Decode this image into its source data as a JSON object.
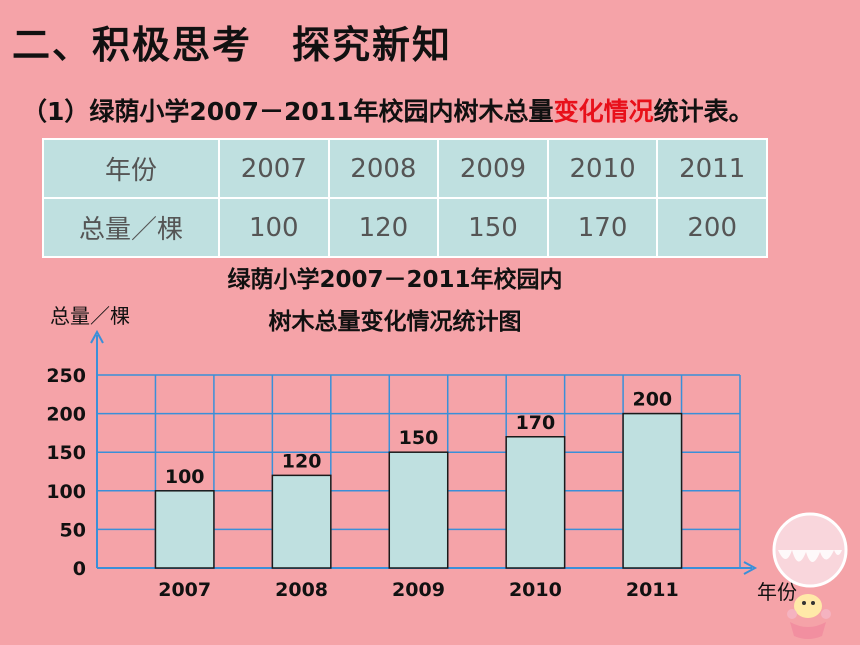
{
  "heading": "二、积极思考　探究新知",
  "subheading": {
    "before": "（1）绿荫小学2007－2011年校园内树木总量",
    "highlight": "变化情况",
    "after": "统计表。"
  },
  "colors": {
    "background": "#f5a3a8",
    "table_fill": "#bfe0e0",
    "bar_fill": "#bfe0e0",
    "grid": "#3a8fd8",
    "highlight_text": "#e8101a"
  },
  "table": {
    "row1_header": "年份",
    "row2_header": "总量／棵",
    "years": [
      "2007",
      "2008",
      "2009",
      "2010",
      "2011"
    ],
    "totals": [
      "100",
      "120",
      "150",
      "170",
      "200"
    ]
  },
  "chart_data": {
    "type": "bar",
    "title_line1": "绿荫小学2007－2011年校园内",
    "title_line2": "树木总量变化情况统计图",
    "xlabel": "年份",
    "ylabel": "总量／棵",
    "categories": [
      "2007",
      "2008",
      "2009",
      "2010",
      "2011"
    ],
    "values": [
      100,
      120,
      150,
      170,
      200
    ],
    "ylim": [
      0,
      250
    ],
    "yticks": [
      0,
      50,
      100,
      150,
      200,
      250
    ],
    "grid": true,
    "data_labels": true
  }
}
